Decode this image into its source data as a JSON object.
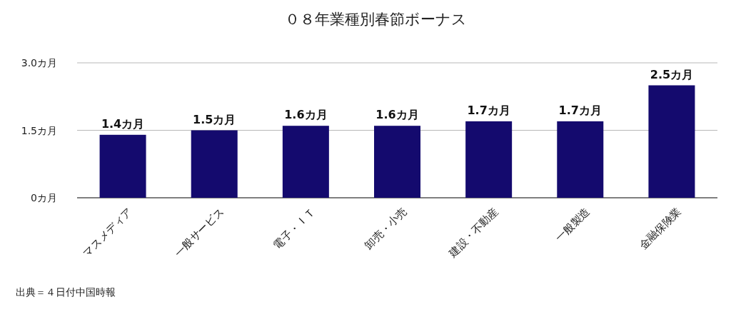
{
  "chart_data": {
    "type": "bar",
    "title": "０８年業種別春節ボーナス",
    "categories": [
      "マスメディア",
      "一般サービス",
      "電子・ＩＴ",
      "卸売・小売",
      "建設・不動産",
      "一般製造",
      "金融保険業"
    ],
    "values": [
      1.4,
      1.5,
      1.6,
      1.6,
      1.7,
      1.7,
      2.5
    ],
    "value_labels": [
      "1.4カ月",
      "1.5カ月",
      "1.6カ月",
      "1.6カ月",
      "1.7カ月",
      "1.7カ月",
      "2.5カ月"
    ],
    "color": "#140a6e",
    "ylim": [
      0,
      3
    ],
    "yticks": [
      {
        "value": 0,
        "label": "0カ月"
      },
      {
        "value": 1.5,
        "label": "1.5カ月"
      },
      {
        "value": 3,
        "label": "3.0カ月"
      }
    ],
    "grid": "y",
    "annotations": [
      "出典＝４日付中国時報"
    ]
  }
}
